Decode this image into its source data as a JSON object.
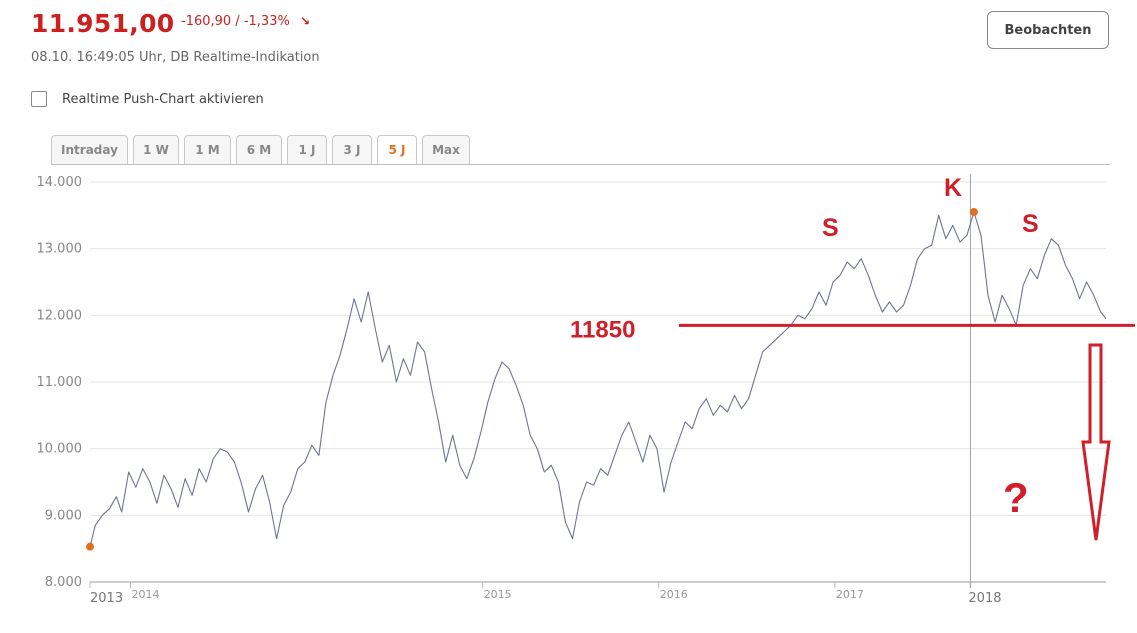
{
  "quote": {
    "price": "11.951,00",
    "change": "-160,90  /  -1,33%",
    "arrow_icon": "arrow-down-right-icon",
    "timestamp": "08.10. 16:49:05 Uhr, DB Realtime-Indikation",
    "colors": {
      "negative": "#cc1f1f"
    }
  },
  "header": {
    "watch_label": "Beobachten"
  },
  "realtime": {
    "label": "Realtime Push-Chart aktivieren",
    "checked": false
  },
  "tabs": [
    {
      "label": "Intraday",
      "active": false
    },
    {
      "label": "1 W",
      "active": false
    },
    {
      "label": "1 M",
      "active": false
    },
    {
      "label": "6 M",
      "active": false
    },
    {
      "label": "1 J",
      "active": false
    },
    {
      "label": "3 J",
      "active": false
    },
    {
      "label": "5 J",
      "active": true
    },
    {
      "label": "Max",
      "active": false
    }
  ],
  "chart_data": {
    "type": "line",
    "title": "",
    "xlabel": "",
    "ylabel": "",
    "ylim": [
      8000,
      14000
    ],
    "yticks": [
      8000,
      9000,
      10000,
      11000,
      12000,
      13000,
      14000
    ],
    "ytick_labels": [
      "8.000",
      "9.000",
      "10.000",
      "11.000",
      "12.000",
      "13.000",
      "14.000"
    ],
    "xlim": [
      2013.0,
      2018.77
    ],
    "xticks": [
      {
        "x": 2013.0,
        "label": "2013",
        "major": true
      },
      {
        "x": 2013.23,
        "label": "2014",
        "major": false
      },
      {
        "x": 2015.23,
        "label": "2015",
        "major": false
      },
      {
        "x": 2016.23,
        "label": "2016",
        "major": false
      },
      {
        "x": 2017.23,
        "label": "2017",
        "major": false
      },
      {
        "x": 2018.0,
        "label": "2018",
        "major": true
      }
    ],
    "grid": true,
    "line_color": "#6f7491",
    "series": [
      {
        "values": [
          [
            2013.0,
            8530
          ],
          [
            2013.03,
            8850
          ],
          [
            2013.07,
            9000
          ],
          [
            2013.11,
            9100
          ],
          [
            2013.15,
            9280
          ],
          [
            2013.18,
            9050
          ],
          [
            2013.22,
            9650
          ],
          [
            2013.26,
            9420
          ],
          [
            2013.3,
            9700
          ],
          [
            2013.34,
            9500
          ],
          [
            2013.38,
            9180
          ],
          [
            2013.42,
            9600
          ],
          [
            2013.46,
            9400
          ],
          [
            2013.5,
            9120
          ],
          [
            2013.54,
            9550
          ],
          [
            2013.58,
            9300
          ],
          [
            2013.62,
            9700
          ],
          [
            2013.66,
            9500
          ],
          [
            2013.7,
            9850
          ],
          [
            2013.74,
            10000
          ],
          [
            2013.78,
            9950
          ],
          [
            2013.82,
            9800
          ],
          [
            2013.86,
            9480
          ],
          [
            2013.9,
            9050
          ],
          [
            2013.94,
            9400
          ],
          [
            2013.98,
            9600
          ],
          [
            2014.02,
            9200
          ],
          [
            2014.06,
            8650
          ],
          [
            2014.1,
            9150
          ],
          [
            2014.14,
            9350
          ],
          [
            2014.18,
            9700
          ],
          [
            2014.22,
            9800
          ],
          [
            2014.26,
            10050
          ],
          [
            2014.3,
            9900
          ],
          [
            2014.34,
            10700
          ],
          [
            2014.38,
            11100
          ],
          [
            2014.42,
            11400
          ],
          [
            2014.46,
            11800
          ],
          [
            2014.5,
            12250
          ],
          [
            2014.54,
            11900
          ],
          [
            2014.58,
            12350
          ],
          [
            2014.62,
            11800
          ],
          [
            2014.66,
            11300
          ],
          [
            2014.7,
            11550
          ],
          [
            2014.74,
            11000
          ],
          [
            2014.78,
            11350
          ],
          [
            2014.82,
            11100
          ],
          [
            2014.86,
            11600
          ],
          [
            2014.9,
            11450
          ],
          [
            2014.94,
            10900
          ],
          [
            2014.98,
            10400
          ],
          [
            2015.02,
            9800
          ],
          [
            2015.06,
            10200
          ],
          [
            2015.1,
            9750
          ],
          [
            2015.14,
            9550
          ],
          [
            2015.18,
            9850
          ],
          [
            2015.22,
            10250
          ],
          [
            2015.26,
            10700
          ],
          [
            2015.3,
            11050
          ],
          [
            2015.34,
            11300
          ],
          [
            2015.38,
            11200
          ],
          [
            2015.42,
            10950
          ],
          [
            2015.46,
            10650
          ],
          [
            2015.5,
            10200
          ],
          [
            2015.54,
            10000
          ],
          [
            2015.58,
            9650
          ],
          [
            2015.62,
            9750
          ],
          [
            2015.66,
            9500
          ],
          [
            2015.7,
            8900
          ],
          [
            2015.74,
            8650
          ],
          [
            2015.78,
            9200
          ],
          [
            2015.82,
            9500
          ],
          [
            2015.86,
            9450
          ],
          [
            2015.9,
            9700
          ],
          [
            2015.94,
            9600
          ],
          [
            2015.98,
            9900
          ],
          [
            2016.02,
            10200
          ],
          [
            2016.06,
            10400
          ],
          [
            2016.1,
            10100
          ],
          [
            2016.14,
            9800
          ],
          [
            2016.18,
            10200
          ],
          [
            2016.22,
            10000
          ],
          [
            2016.26,
            9350
          ],
          [
            2016.3,
            9800
          ],
          [
            2016.34,
            10100
          ],
          [
            2016.38,
            10400
          ],
          [
            2016.42,
            10300
          ],
          [
            2016.46,
            10600
          ],
          [
            2016.5,
            10750
          ],
          [
            2016.54,
            10500
          ],
          [
            2016.58,
            10650
          ],
          [
            2016.62,
            10550
          ],
          [
            2016.66,
            10800
          ],
          [
            2016.7,
            10600
          ],
          [
            2016.74,
            10750
          ],
          [
            2016.78,
            11100
          ],
          [
            2016.82,
            11450
          ],
          [
            2016.86,
            11550
          ],
          [
            2016.9,
            11650
          ],
          [
            2016.94,
            11750
          ],
          [
            2016.98,
            11850
          ],
          [
            2017.02,
            12000
          ],
          [
            2017.06,
            11950
          ],
          [
            2017.1,
            12100
          ],
          [
            2017.14,
            12350
          ],
          [
            2017.18,
            12150
          ],
          [
            2017.22,
            12500
          ],
          [
            2017.26,
            12600
          ],
          [
            2017.3,
            12800
          ],
          [
            2017.34,
            12700
          ],
          [
            2017.38,
            12850
          ],
          [
            2017.42,
            12600
          ],
          [
            2017.46,
            12300
          ],
          [
            2017.5,
            12050
          ],
          [
            2017.54,
            12200
          ],
          [
            2017.58,
            12050
          ],
          [
            2017.62,
            12150
          ],
          [
            2017.66,
            12450
          ],
          [
            2017.7,
            12850
          ],
          [
            2017.74,
            13000
          ],
          [
            2017.78,
            13050
          ],
          [
            2017.82,
            13500
          ],
          [
            2017.86,
            13150
          ],
          [
            2017.9,
            13350
          ],
          [
            2017.94,
            13100
          ],
          [
            2017.98,
            13200
          ],
          [
            2018.02,
            13550
          ],
          [
            2018.06,
            13200
          ],
          [
            2018.1,
            12300
          ],
          [
            2018.14,
            11900
          ],
          [
            2018.18,
            12300
          ],
          [
            2018.22,
            12100
          ],
          [
            2018.26,
            11850
          ],
          [
            2018.3,
            12450
          ],
          [
            2018.34,
            12700
          ],
          [
            2018.38,
            12550
          ],
          [
            2018.42,
            12900
          ],
          [
            2018.46,
            13150
          ],
          [
            2018.5,
            13050
          ],
          [
            2018.54,
            12750
          ],
          [
            2018.58,
            12550
          ],
          [
            2018.62,
            12250
          ],
          [
            2018.66,
            12500
          ],
          [
            2018.7,
            12300
          ],
          [
            2018.74,
            12050
          ],
          [
            2018.77,
            11950
          ]
        ]
      }
    ],
    "markers": [
      {
        "x": 2013.0,
        "y": 8530,
        "color": "#e07020"
      },
      {
        "x": 2018.02,
        "y": 13550,
        "color": "#e07020"
      }
    ],
    "crosshair_x": 2018.0,
    "annotations": {
      "level_label": "11850",
      "level_value": 11850,
      "left_shoulder": "S",
      "head": "K",
      "right_shoulder": "S",
      "question": "?",
      "color": "#d01f2a"
    }
  }
}
